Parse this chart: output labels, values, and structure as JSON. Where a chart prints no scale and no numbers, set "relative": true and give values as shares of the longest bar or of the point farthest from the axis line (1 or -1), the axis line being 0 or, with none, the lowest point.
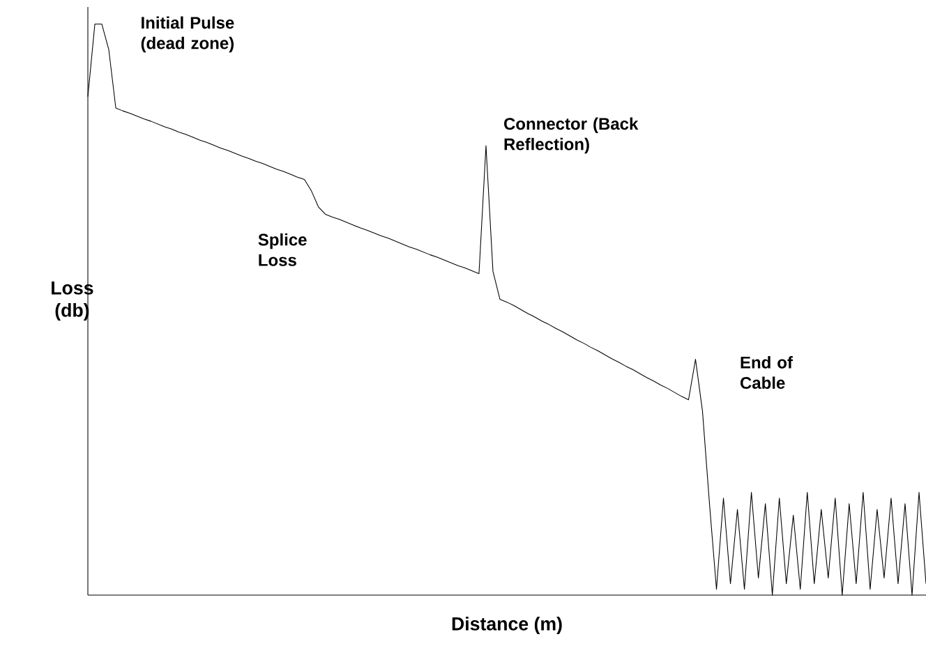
{
  "chart_data": {
    "type": "line",
    "relative": true,
    "xlabel": "Distance (m)",
    "ylabel": "Loss (db)",
    "color": "#000000",
    "categories": [
      null,
      null,
      null,
      null,
      null,
      null,
      null,
      null,
      null,
      null,
      null,
      null,
      null,
      null,
      null,
      null,
      null,
      null,
      null,
      null,
      null,
      null,
      null,
      null,
      null,
      null,
      null,
      null,
      null,
      null,
      null,
      null,
      null,
      null,
      null,
      null,
      null,
      null,
      null,
      null,
      null,
      null,
      null,
      null,
      null,
      null,
      null,
      null,
      null,
      null,
      null,
      null,
      null,
      null,
      null,
      null,
      null,
      null,
      null,
      null,
      null,
      null,
      null,
      null,
      null,
      null,
      null,
      null,
      null,
      null,
      null,
      null,
      null,
      null,
      null,
      null,
      null,
      null,
      null,
      null,
      null,
      null,
      null,
      null,
      null,
      null,
      null,
      null,
      null,
      null,
      null,
      null,
      null,
      null,
      null,
      null,
      null,
      null,
      null,
      null,
      null,
      null,
      null,
      null,
      null,
      null,
      null,
      null,
      null,
      null,
      null,
      null,
      null,
      null,
      null,
      null,
      null,
      null,
      null,
      null,
      null
    ],
    "values": [
      0.873,
      1.0,
      1.0,
      0.955,
      0.853,
      0.848,
      0.844,
      0.839,
      0.834,
      0.83,
      0.825,
      0.82,
      0.816,
      0.811,
      0.807,
      0.802,
      0.797,
      0.793,
      0.788,
      0.783,
      0.779,
      0.774,
      0.769,
      0.765,
      0.76,
      0.756,
      0.751,
      0.746,
      0.742,
      0.737,
      0.732,
      0.728,
      0.708,
      0.68,
      0.667,
      0.662,
      0.658,
      0.653,
      0.648,
      0.643,
      0.639,
      0.634,
      0.629,
      0.625,
      0.62,
      0.615,
      0.61,
      0.606,
      0.601,
      0.596,
      0.592,
      0.587,
      0.582,
      0.577,
      0.573,
      0.568,
      0.563,
      0.787,
      0.567,
      0.518,
      0.513,
      0.507,
      0.5,
      0.493,
      0.487,
      0.48,
      0.474,
      0.467,
      0.461,
      0.454,
      0.447,
      0.441,
      0.434,
      0.428,
      0.421,
      0.414,
      0.408,
      0.401,
      0.395,
      0.388,
      0.381,
      0.375,
      0.368,
      0.362,
      0.355,
      0.348,
      0.342,
      0.413,
      0.322,
      0.16,
      0.01,
      0.17,
      0.02,
      0.15,
      0.01,
      0.18,
      0.03,
      0.16,
      0.0,
      0.17,
      0.02,
      0.14,
      0.01,
      0.18,
      0.02,
      0.15,
      0.03,
      0.17,
      0.0,
      0.16,
      0.02,
      0.18,
      0.01,
      0.15,
      0.03,
      0.17,
      0.02,
      0.16,
      0.0,
      0.18,
      0.02
    ],
    "annotations": [
      "Initial Pulse (dead zone)",
      "Splice Loss",
      "Connector (Back Reflection)",
      "End of Cable"
    ]
  }
}
